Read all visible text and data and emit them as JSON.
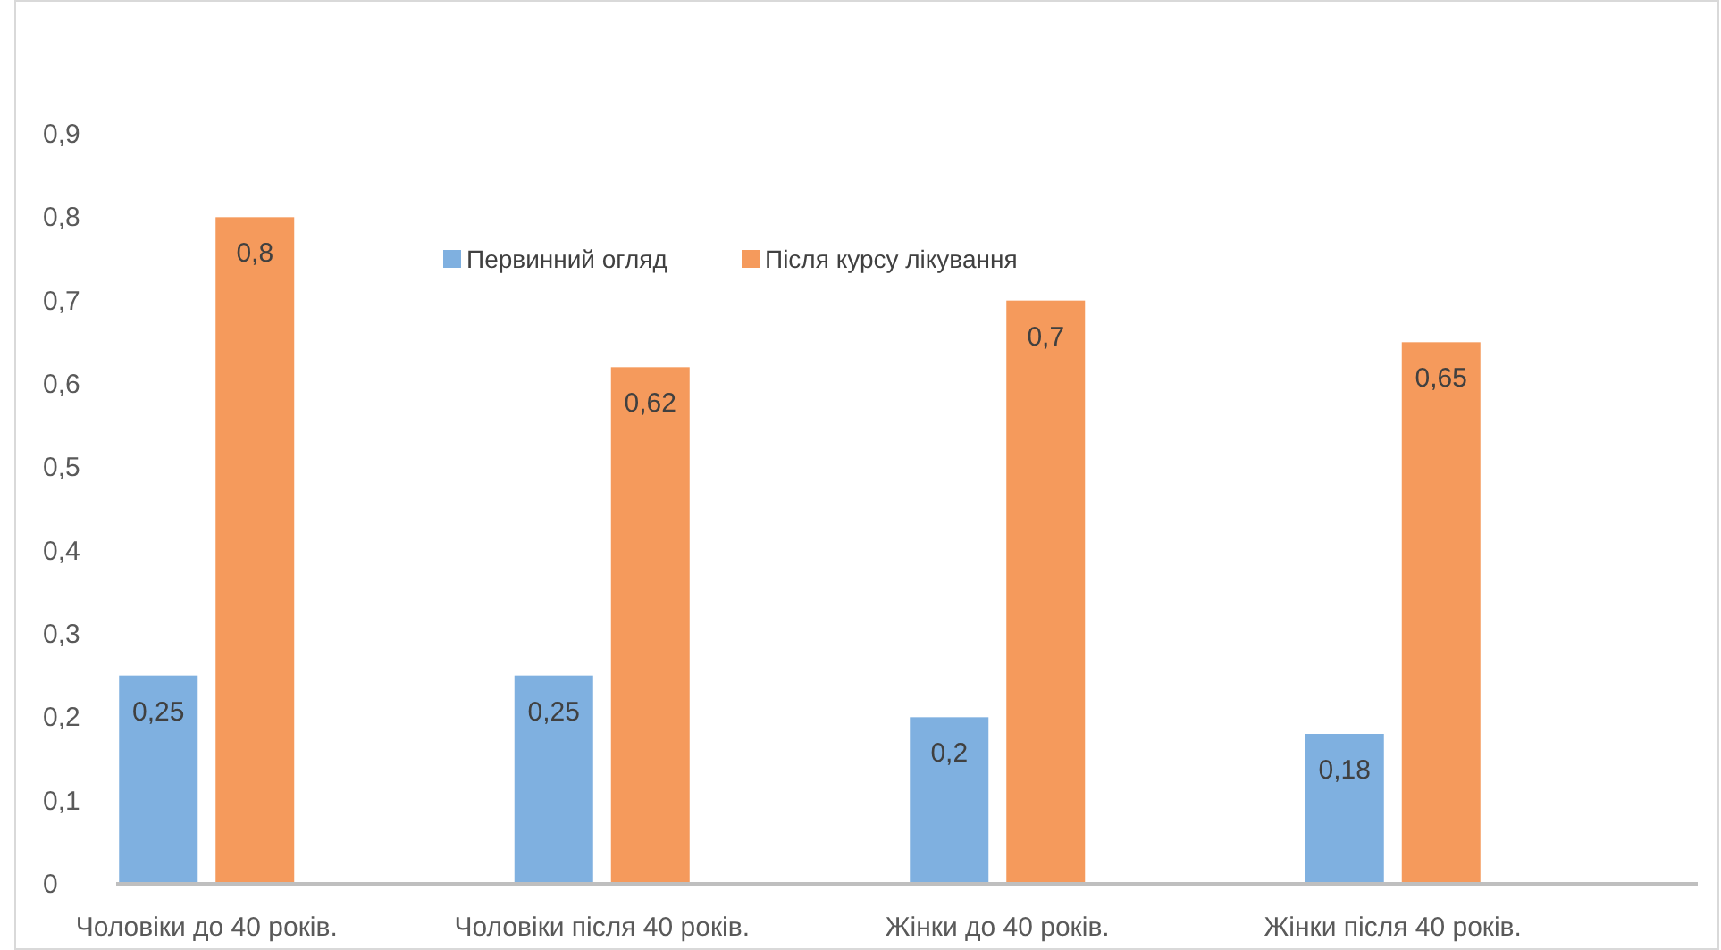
{
  "chart_data": {
    "type": "bar",
    "categories": [
      "Чоловіки до 40 років.",
      "Чоловіки після 40 років.",
      "Жінки до 40 років.",
      "Жінки після 40 років."
    ],
    "series": [
      {
        "name": "Первинний огляд",
        "color": "#7fb0e0",
        "values": [
          0.25,
          0.25,
          0.2,
          0.18
        ],
        "value_labels": [
          "0,25",
          "0,25",
          "0,2",
          "0,18"
        ]
      },
      {
        "name": "Після курсу лікування",
        "color": "#f59a5c",
        "values": [
          0.8,
          0.62,
          0.7,
          0.65
        ],
        "value_labels": [
          "0,8",
          "0,62",
          "0,7",
          "0,65"
        ]
      }
    ],
    "ylim": [
      0,
      0.9
    ],
    "yticks": [
      {
        "value": 0,
        "label": "0"
      },
      {
        "value": 0.1,
        "label": "0,1"
      },
      {
        "value": 0.2,
        "label": "0,2"
      },
      {
        "value": 0.3,
        "label": "0,3"
      },
      {
        "value": 0.4,
        "label": "0,4"
      },
      {
        "value": 0.5,
        "label": "0,5"
      },
      {
        "value": 0.6,
        "label": "0,6"
      },
      {
        "value": 0.7,
        "label": "0,7"
      },
      {
        "value": 0.8,
        "label": "0,8"
      },
      {
        "value": 0.9,
        "label": "0,9"
      }
    ],
    "grid": false,
    "legend": "top"
  }
}
